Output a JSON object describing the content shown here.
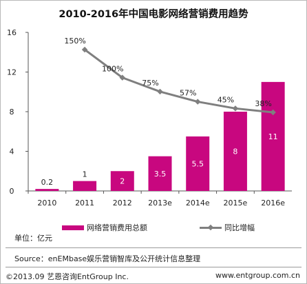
{
  "colors": {
    "bar": "#c8077f",
    "line": "#7f7f7f",
    "axis": "#555555"
  },
  "footer": {
    "unit": "单位：亿元",
    "source": "Source：enEMbase娱乐营销智库及公开统计信息整理",
    "copyright": "©2013.09  艺恩咨询EntGroup Inc.",
    "website": "www.entgroup.com.cn"
  },
  "chart_data": {
    "type": "bar",
    "title": "2010-2016年中国电影网络营销费用趋势",
    "categories": [
      "2010",
      "2011",
      "2012",
      "2013e",
      "2014e",
      "2015e",
      "2016e"
    ],
    "ylim": [
      0,
      16
    ],
    "yticks": [
      "0",
      "4",
      "8",
      "12",
      "16"
    ],
    "series": [
      {
        "name": "网络营销费用总额",
        "type": "bar",
        "values": [
          0.2,
          1,
          2,
          3.5,
          5.5,
          8,
          11
        ],
        "labels": [
          "0.2",
          "1",
          "2",
          "3.5",
          "5.5",
          "8",
          "11"
        ]
      },
      {
        "name": "同比增幅",
        "type": "line",
        "values": [
          null,
          150,
          100,
          75,
          57,
          45,
          38
        ],
        "labels": [
          null,
          "150%",
          "100%",
          "75%",
          "57%",
          "45%",
          "38%"
        ]
      }
    ],
    "legend_position": "bottom",
    "grid": false
  }
}
